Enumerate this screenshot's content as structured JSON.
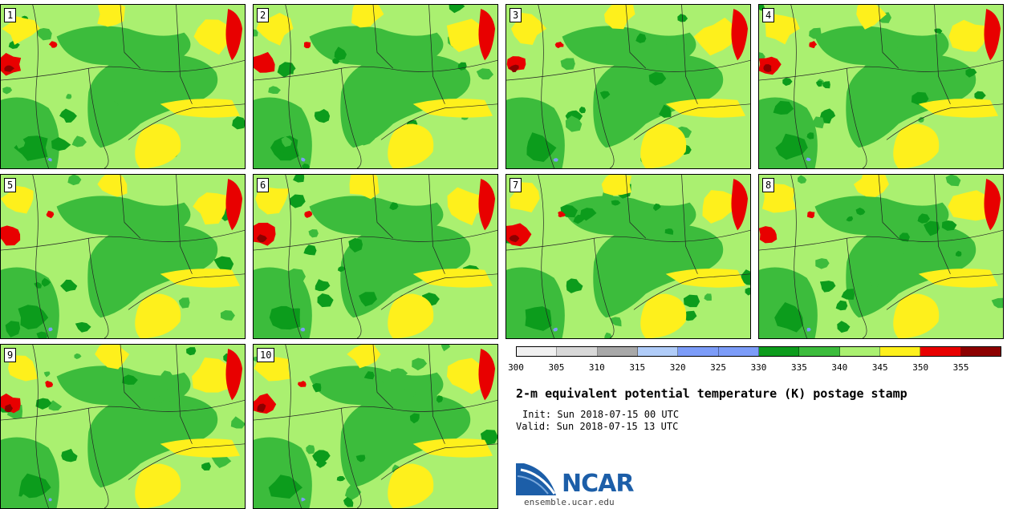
{
  "panels": [
    {
      "number": "1"
    },
    {
      "number": "2"
    },
    {
      "number": "3"
    },
    {
      "number": "4"
    },
    {
      "number": "5"
    },
    {
      "number": "6"
    },
    {
      "number": "7"
    },
    {
      "number": "8"
    },
    {
      "number": "9"
    },
    {
      "number": "10"
    }
  ],
  "colorbar": {
    "ticks": [
      "300",
      "305",
      "310",
      "315",
      "320",
      "325",
      "330",
      "335",
      "340",
      "345",
      "350",
      "355"
    ],
    "colors": [
      "#f0f0f0",
      "#d8d8d8",
      "#a8a8a8",
      "#b0ccf8",
      "#7c9cf8",
      "#7c9cf8",
      "#0c9c1c",
      "#3cbc3c",
      "#aaf070",
      "#fef01c",
      "#e80000",
      "#8c0000"
    ]
  },
  "title": "2-m equivalent potential temperature (K) postage stamp",
  "init": "Init: Sun 2018-07-15 00 UTC",
  "valid": "Valid: Sun 2018-07-15 13 UTC",
  "logo": {
    "text": "NCAR",
    "site": "ensemble.ucar.edu",
    "color": "#1c5ea8"
  }
}
